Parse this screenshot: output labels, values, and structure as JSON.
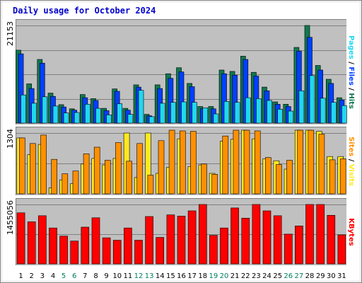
{
  "chart_data": {
    "type": "bar",
    "title": "Daily usage for October 2024",
    "days": [
      "1",
      "2",
      "3",
      "4",
      "5",
      "6",
      "7",
      "8",
      "9",
      "10",
      "11",
      "12",
      "13",
      "14",
      "15",
      "16",
      "17",
      "18",
      "19",
      "20",
      "21",
      "22",
      "23",
      "24",
      "25",
      "26",
      "27",
      "28",
      "29",
      "30",
      "31"
    ],
    "weekend_days": [
      "5",
      "6",
      "12",
      "13",
      "19",
      "20",
      "26",
      "27"
    ],
    "colors": {
      "hits": "#107850",
      "files": "#0040ff",
      "pages": "#20d8f0",
      "visits": "#ff9000",
      "sites": "#ffe820",
      "kbytes": "#ff0000",
      "plot_bg": "#c0c0c0",
      "weekday_label": "#000000",
      "weekend_label": "#008060",
      "title": "#0000cc"
    },
    "panels": [
      {
        "id": "hits-files-pages",
        "axis_max_label": "21153",
        "ymax": 21153,
        "legend": [
          {
            "text": "Pages",
            "color": "#20d8f0"
          },
          {
            "text": " / ",
            "color": "#000000"
          },
          {
            "text": "Files",
            "color": "#0040ff"
          },
          {
            "text": " / ",
            "color": "#000000"
          },
          {
            "text": "Hits",
            "color": "#107850"
          }
        ],
        "series": [
          {
            "name": "Hits",
            "color": "#107850",
            "values": [
              15800,
              8500,
              13800,
              6500,
              4000,
              3100,
              6200,
              5300,
              3200,
              7400,
              3200,
              8300,
              1900,
              8300,
              10700,
              12000,
              8600,
              3600,
              3600,
              11500,
              11200,
              14500,
              11000,
              7800,
              4600,
              4100,
              16400,
              21153,
              12500,
              9500,
              5500
            ]
          },
          {
            "name": "Files",
            "color": "#0040ff",
            "values": [
              15000,
              7500,
              13000,
              5800,
              3500,
              2800,
              5500,
              4900,
              2700,
              6900,
              2800,
              7800,
              1600,
              7500,
              9700,
              11100,
              7900,
              3100,
              3100,
              10700,
              10400,
              13800,
              10200,
              7000,
              4100,
              3600,
              15600,
              18600,
              11500,
              8600,
              5000
            ]
          },
          {
            "name": "Pages",
            "color": "#20d8f0",
            "values": [
              6100,
              4300,
              5700,
              3700,
              2200,
              2300,
              4100,
              3200,
              1800,
              4200,
              1900,
              7100,
              1400,
              4300,
              4500,
              4600,
              4500,
              3300,
              2000,
              4700,
              4500,
              5500,
              5300,
              4900,
              3000,
              2600,
              7000,
              10300,
              5400,
              4500,
              3800
            ]
          }
        ]
      },
      {
        "id": "visits-sites",
        "axis_max_label": "1304",
        "ymax": 1304,
        "legend": [
          {
            "text": "Sites",
            "color": "#ff9000"
          },
          {
            "text": " / ",
            "color": "#000000"
          },
          {
            "text": "Visits",
            "color": "#ffe820"
          }
        ],
        "series": [
          {
            "name": "Visits",
            "color": "#ffe820",
            "values": [
              1200,
              840,
              1060,
              130,
              300,
              220,
              640,
              760,
              620,
              760,
              1304,
              350,
              1304,
              440,
              570,
              1180,
              580,
              620,
              440,
              1130,
              1170,
              1430,
              1180,
              750,
              710,
              530,
              1480,
              1520,
              1340,
              800,
              800
            ]
          },
          {
            "name": "Sites",
            "color": "#ff9000",
            "values": [
              1200,
              1080,
              1260,
              740,
              430,
              490,
              860,
              1000,
              720,
              1100,
              700,
              1080,
              400,
              1140,
              1580,
              1350,
              1340,
              640,
              420,
              1240,
              1420,
              1380,
              1350,
              780,
              630,
              720,
              1750,
              1800,
              1280,
              730,
              750
            ]
          }
        ]
      },
      {
        "id": "kbytes",
        "axis_max_label": "1455056",
        "ymax": 1455056,
        "legend": [
          {
            "text": "KBytes",
            "color": "#ff0000"
          }
        ],
        "series": [
          {
            "name": "KBytes",
            "color": "#ff0000",
            "values": [
              1250000,
              1030000,
              1180000,
              880000,
              680000,
              560000,
              900000,
              1130000,
              640000,
              580000,
              880000,
              580000,
              1160000,
              650000,
              1200000,
              1170000,
              1300000,
              1455056,
              700000,
              880000,
              1370000,
              1120000,
              1455056,
              1300000,
              1180000,
              730000,
              930000,
              1455056,
              1455056,
              1190000,
              710000
            ]
          }
        ]
      }
    ]
  }
}
